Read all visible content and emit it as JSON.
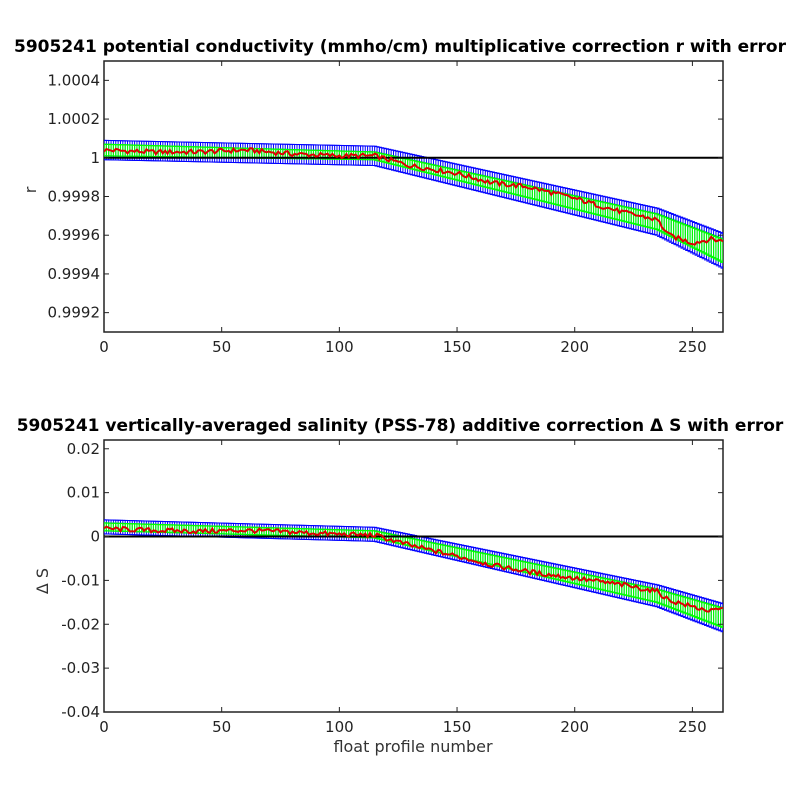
{
  "chart_data": [
    {
      "type": "line",
      "title": "5905241 potential conductivity (mmho/cm) multiplicative correction r with error",
      "xlabel": "",
      "ylabel": "r",
      "xlim": [
        0,
        263
      ],
      "ylim": [
        0.9991,
        1.0005
      ],
      "xticks": [
        "0",
        "50",
        "100",
        "150",
        "200",
        "250"
      ],
      "yticks": [
        "0.9992",
        "0.9994",
        "0.9996",
        "0.9998",
        "1",
        "1.0002",
        "1.0004"
      ],
      "reference_line": 1.0,
      "colors": {
        "reference": "#000000",
        "error_outer": "#0000ff",
        "error_inner": "#00ff00",
        "measured": "#dd0000"
      },
      "series": [
        {
          "role": "fitted correction (green) with error bars (blue)",
          "x": [
            0,
            115,
            235,
            263
          ],
          "y": [
            1.00004,
            1.00001,
            0.99967,
            0.99952
          ],
          "err_outer": [
            5e-05,
            5e-05,
            7e-05,
            9e-05
          ],
          "err_inner": [
            3e-05,
            2e-05,
            4e-05,
            6e-05
          ]
        },
        {
          "role": "profile-by-profile correction (red)",
          "x": [
            0,
            20,
            40,
            60,
            80,
            100,
            115,
            130,
            150,
            165,
            180,
            200,
            220,
            235,
            240,
            250,
            258,
            263
          ],
          "y": [
            1.00004,
            1.00003,
            1.00003,
            1.00004,
            1.00002,
            1.00001,
            1.00001,
            0.99996,
            0.99992,
            0.99987,
            0.99985,
            0.99979,
            0.99972,
            0.99968,
            0.9996,
            0.99956,
            0.99958,
            0.99957
          ]
        }
      ]
    },
    {
      "type": "line",
      "title": "5905241 vertically-averaged salinity (PSS-78) additive correction Δ S with error",
      "xlabel": "float profile number",
      "ylabel": "Δ S",
      "xlim": [
        0,
        263
      ],
      "ylim": [
        -0.04,
        0.022
      ],
      "xticks": [
        "0",
        "50",
        "100",
        "150",
        "200",
        "250"
      ],
      "yticks": [
        "-0.04",
        "-0.03",
        "-0.02",
        "-0.01",
        "0",
        "0.01",
        "0.02"
      ],
      "reference_line": 0,
      "colors": {
        "reference": "#000000",
        "error_outer": "#0000ff",
        "error_inner": "#00ff00",
        "measured": "#dd0000"
      },
      "series": [
        {
          "role": "fitted correction (green) with error bars (blue)",
          "x": [
            0,
            115,
            235,
            263
          ],
          "y": [
            0.0022,
            0.0005,
            -0.0135,
            -0.0185
          ],
          "err_outer": [
            0.0016,
            0.0016,
            0.0025,
            0.0032
          ],
          "err_inner": [
            0.0009,
            0.0008,
            0.0015,
            0.0022
          ]
        },
        {
          "role": "profile-by-profile correction (red)",
          "x": [
            0,
            20,
            40,
            60,
            80,
            100,
            115,
            130,
            150,
            165,
            180,
            200,
            220,
            235,
            240,
            250,
            258,
            263
          ],
          "y": [
            0.0018,
            0.0014,
            0.0012,
            0.0014,
            0.001,
            0.0005,
            0.0003,
            -0.002,
            -0.0045,
            -0.0065,
            -0.008,
            -0.0095,
            -0.011,
            -0.0125,
            -0.0145,
            -0.016,
            -0.017,
            -0.0165
          ]
        }
      ]
    }
  ]
}
